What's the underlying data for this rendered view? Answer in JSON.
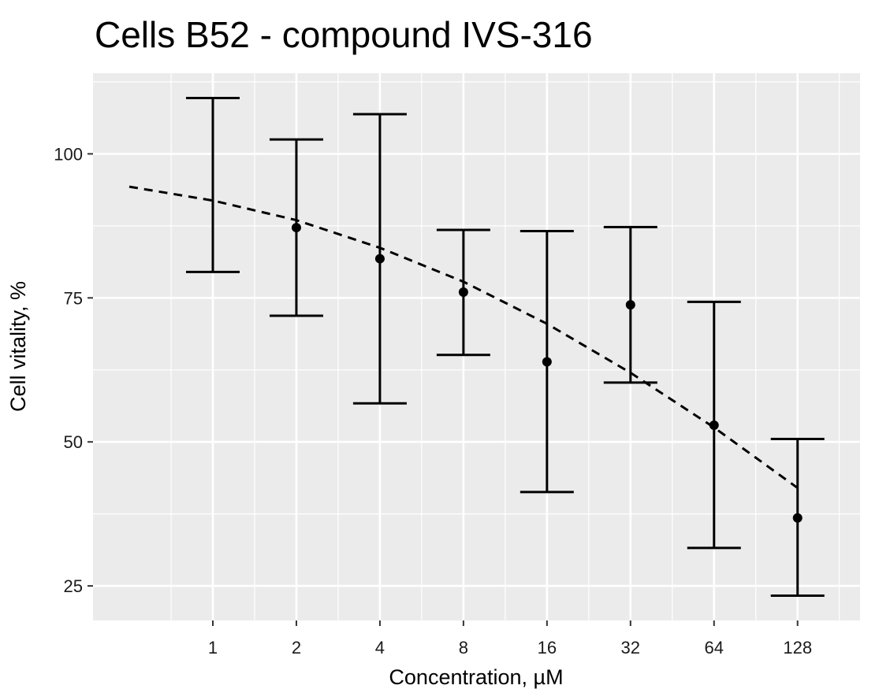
{
  "chart_data": {
    "type": "scatter",
    "title": "Cells  B52  - compound  IVS-316",
    "xlabel": "Concentration, µM",
    "ylabel": "Cell vitality, %",
    "x_scale": "log2",
    "x_ticks": [
      "1",
      "2",
      "4",
      "8",
      "16",
      "32",
      "64",
      "128"
    ],
    "y_ticks": [
      25,
      50,
      75,
      100
    ],
    "xlim": [
      0.37,
      215
    ],
    "ylim": [
      19,
      114
    ],
    "grid": true,
    "legend": "none",
    "points": [
      {
        "x": 1,
        "y": null,
        "ymin": 79.5,
        "ymax": 109.7
      },
      {
        "x": 2,
        "y": 87.2,
        "ymin": 71.9,
        "ymax": 102.5
      },
      {
        "x": 4,
        "y": 81.8,
        "ymin": 56.7,
        "ymax": 106.9
      },
      {
        "x": 8,
        "y": 76.0,
        "ymin": 65.1,
        "ymax": 86.8
      },
      {
        "x": 16,
        "y": 63.9,
        "ymin": 41.3,
        "ymax": 86.6
      },
      {
        "x": 32,
        "y": 73.8,
        "ymin": 60.3,
        "ymax": 87.3
      },
      {
        "x": 64,
        "y": 52.9,
        "ymin": 31.6,
        "ymax": 74.3
      },
      {
        "x": 128,
        "y": 36.8,
        "ymin": 23.3,
        "ymax": 50.5
      }
    ],
    "fit_curve": [
      {
        "x": 0.5,
        "y": 94.3
      },
      {
        "x": 1,
        "y": 91.9
      },
      {
        "x": 2,
        "y": 88.5
      },
      {
        "x": 4,
        "y": 83.7
      },
      {
        "x": 8,
        "y": 77.8
      },
      {
        "x": 16,
        "y": 70.5
      },
      {
        "x": 32,
        "y": 62.0
      },
      {
        "x": 64,
        "y": 52.5
      },
      {
        "x": 128,
        "y": 42.0
      }
    ],
    "colors": {
      "panel": "#EBEBEB",
      "grid": "#FFFFFF",
      "marks": "#000000"
    }
  }
}
